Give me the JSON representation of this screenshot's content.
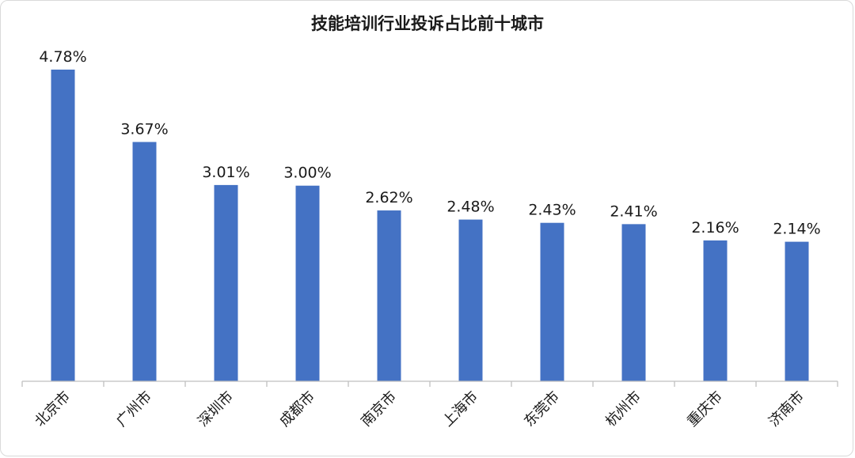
{
  "chart_data": {
    "type": "bar",
    "title": "技能培训行业投诉占比前十城市",
    "categories": [
      "北京市",
      "广州市",
      "深圳市",
      "成都市",
      "南京市",
      "上海市",
      "东莞市",
      "杭州市",
      "重庆市",
      "济南市"
    ],
    "values": [
      4.78,
      3.67,
      3.01,
      3.0,
      2.62,
      2.48,
      2.43,
      2.41,
      2.16,
      2.14
    ],
    "value_labels": [
      "4.78%",
      "3.67%",
      "3.01%",
      "3.00%",
      "2.62%",
      "2.48%",
      "2.43%",
      "2.41%",
      "2.16%",
      "2.14%"
    ],
    "ylim": [
      0,
      4.78
    ],
    "grid": false,
    "bar_color": "#4472c4"
  }
}
